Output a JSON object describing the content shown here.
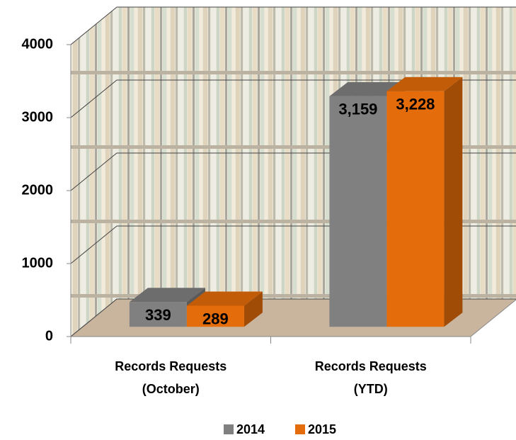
{
  "chart_data": {
    "type": "bar3d",
    "categories": [
      [
        "Records Requests",
        "(October)"
      ],
      [
        "Records Requests",
        "(YTD)"
      ]
    ],
    "series": [
      {
        "name": "2014",
        "color": "#808080",
        "values": [
          339,
          3159
        ],
        "value_labels": [
          "339",
          "3,159"
        ]
      },
      {
        "name": "2015",
        "color": "#e46c0a",
        "values": [
          289,
          3228
        ],
        "value_labels": [
          "289",
          "3,228"
        ]
      }
    ],
    "ylim": [
      0,
      4000
    ],
    "yticks": [
      0,
      1000,
      2000,
      3000,
      4000
    ],
    "grid": true,
    "legend": "bottom"
  }
}
